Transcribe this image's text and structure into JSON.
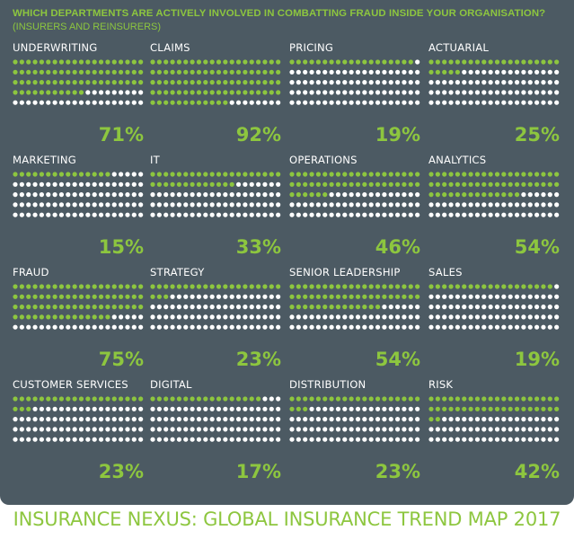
{
  "header": {
    "question": "WHICH DEPARTMENTS ARE ACTIVELY INVOLVED IN COMBATTING FRAUD INSIDE YOUR ORGANISATION?",
    "subtitle": "(INSURERS AND REINSURERS)"
  },
  "footer": {
    "text": "INSURANCE NEXUS: GLOBAL INSURANCE TREND MAP 2017"
  },
  "colors": {
    "panel": "#4c5a63",
    "accent": "#8dc63f",
    "dot_off": "#ffffff"
  },
  "chart_data": {
    "type": "dot-matrix",
    "title": "WHICH DEPARTMENTS ARE ACTIVELY INVOLVED IN COMBATTING FRAUD INSIDE YOUR ORGANISATION?",
    "subtitle": "(INSURERS AND REINSURERS)",
    "unit": "%",
    "dots_per_panel": 100,
    "departments": [
      {
        "name": "UNDERWRITING",
        "value": 71,
        "label": "71%"
      },
      {
        "name": "CLAIMS",
        "value": 92,
        "label": "92%"
      },
      {
        "name": "PRICING",
        "value": 19,
        "label": "19%"
      },
      {
        "name": "ACTUARIAL",
        "value": 25,
        "label": "25%"
      },
      {
        "name": "MARKETING",
        "value": 15,
        "label": "15%"
      },
      {
        "name": "IT",
        "value": 33,
        "label": "33%"
      },
      {
        "name": "OPERATIONS",
        "value": 46,
        "label": "46%"
      },
      {
        "name": "ANALYTICS",
        "value": 54,
        "label": "54%"
      },
      {
        "name": "FRAUD",
        "value": 75,
        "label": "75%"
      },
      {
        "name": "STRATEGY",
        "value": 23,
        "label": "23%"
      },
      {
        "name": "SENIOR LEADERSHIP",
        "value": 54,
        "label": "54%"
      },
      {
        "name": "SALES",
        "value": 19,
        "label": "19%"
      },
      {
        "name": "CUSTOMER SERVICES",
        "value": 23,
        "label": "23%"
      },
      {
        "name": "DIGITAL",
        "value": 17,
        "label": "17%"
      },
      {
        "name": "DISTRIBUTION",
        "value": 23,
        "label": "23%"
      },
      {
        "name": "RISK",
        "value": 42,
        "label": "42%"
      }
    ]
  }
}
